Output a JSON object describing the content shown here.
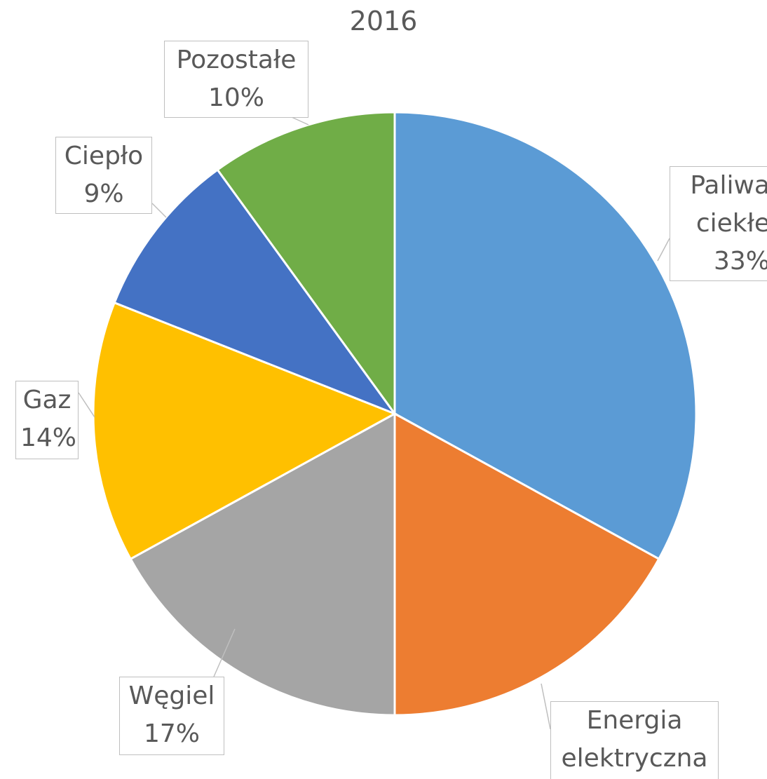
{
  "chart_data": {
    "type": "pie",
    "title": "2016",
    "categories": [
      "Paliwa ciekłe",
      "Energia elektryczna",
      "Węgiel",
      "Gaz",
      "Ciepło",
      "Pozostałe"
    ],
    "values": [
      33,
      17,
      17,
      14,
      9,
      10
    ],
    "value_labels": [
      "33%",
      "17%",
      "17%",
      "14%",
      "9%",
      "10%"
    ],
    "colors": [
      "#5b9bd5",
      "#ed7d31",
      "#a5a5a5",
      "#ffc000",
      "#4472c4",
      "#70ad47"
    ]
  }
}
